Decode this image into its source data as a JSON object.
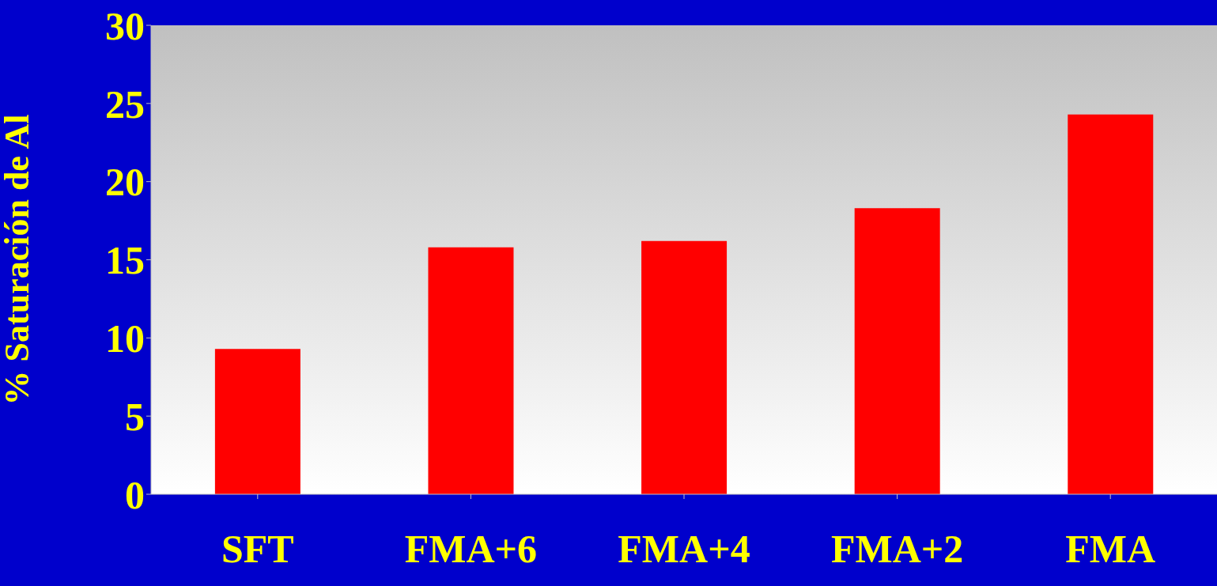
{
  "chart_data": {
    "type": "bar",
    "ylabel": "% Saturación de Al",
    "categories": [
      "SFT",
      "FMA+6",
      "FMA+4",
      "FMA+2",
      "FMA"
    ],
    "values": [
      9.3,
      15.8,
      16.2,
      18.3,
      24.3
    ],
    "color": "#ff0000",
    "ylim": [
      0,
      30
    ],
    "yticks": [
      0,
      5,
      10,
      15,
      20,
      25,
      30
    ]
  }
}
